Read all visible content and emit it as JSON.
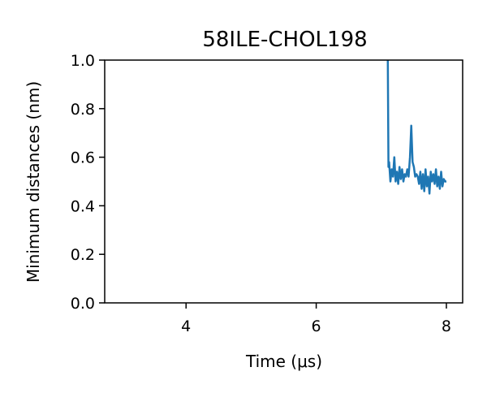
{
  "chart_data": {
    "type": "line",
    "title": "58ILE-CHOL198",
    "xlabel": "Time (μs)",
    "ylabel": "Minimum distances (nm)",
    "xlim": [
      2.75,
      8.25
    ],
    "ylim": [
      0.0,
      1.0
    ],
    "xticks": [
      4,
      6,
      8
    ],
    "xtick_labels": [
      "4",
      "6",
      "8"
    ],
    "yticks": [
      0.0,
      0.2,
      0.4,
      0.6,
      0.8,
      1.0
    ],
    "ytick_labels": [
      "0.0",
      "0.2",
      "0.4",
      "0.6",
      "0.8",
      "1.0"
    ],
    "grid": false,
    "series": [
      {
        "color": "#1f77b4",
        "x": [
          7.1,
          7.11,
          7.12,
          7.14,
          7.16,
          7.18,
          7.2,
          7.22,
          7.24,
          7.26,
          7.28,
          7.3,
          7.32,
          7.34,
          7.36,
          7.38,
          7.4,
          7.42,
          7.44,
          7.46,
          7.48,
          7.5,
          7.52,
          7.54,
          7.56,
          7.58,
          7.6,
          7.62,
          7.64,
          7.66,
          7.68,
          7.7,
          7.72,
          7.74,
          7.76,
          7.78,
          7.8,
          7.82,
          7.84,
          7.86,
          7.88,
          7.9,
          7.92,
          7.94,
          7.96,
          7.98,
          8.0
        ],
        "y": [
          1.0,
          0.56,
          0.58,
          0.5,
          0.55,
          0.52,
          0.6,
          0.5,
          0.54,
          0.49,
          0.56,
          0.51,
          0.55,
          0.5,
          0.53,
          0.52,
          0.55,
          0.52,
          0.6,
          0.73,
          0.58,
          0.56,
          0.52,
          0.53,
          0.52,
          0.49,
          0.54,
          0.47,
          0.53,
          0.46,
          0.55,
          0.48,
          0.52,
          0.45,
          0.54,
          0.5,
          0.53,
          0.49,
          0.55,
          0.48,
          0.52,
          0.47,
          0.54,
          0.48,
          0.51,
          0.5,
          0.5
        ]
      }
    ]
  }
}
